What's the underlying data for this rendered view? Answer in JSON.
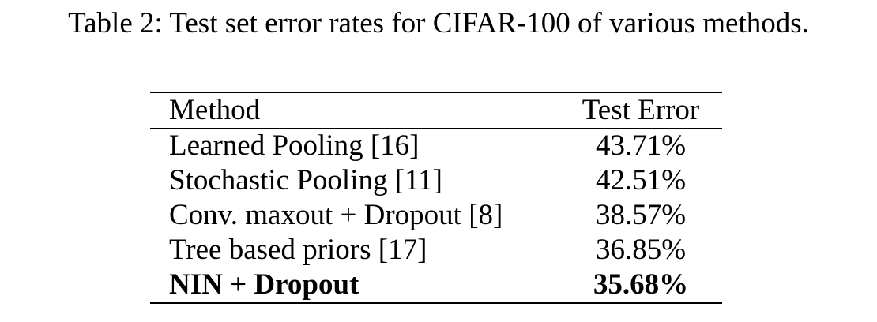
{
  "caption": "Table 2: Test set error rates for CIFAR-100 of various methods.",
  "table": {
    "headers": {
      "method": "Method",
      "error": "Test Error"
    },
    "rows": [
      {
        "method": "Learned Pooling [16]",
        "error": "43.71%"
      },
      {
        "method": "Stochastic Pooling [11]",
        "error": "42.51%"
      },
      {
        "method": "Conv. maxout + Dropout [8]",
        "error": "38.57%"
      },
      {
        "method": "Tree based priors [17]",
        "error": "36.85%"
      },
      {
        "method": "NIN + Dropout",
        "error": "35.68%"
      }
    ]
  }
}
